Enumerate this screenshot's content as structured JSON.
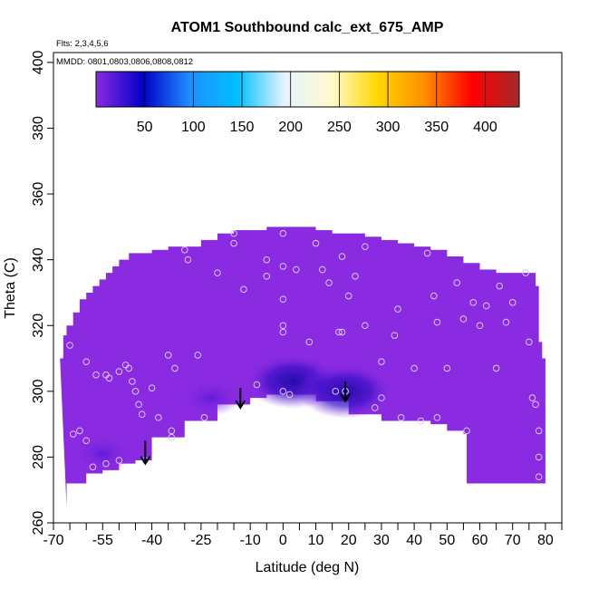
{
  "chart_data": {
    "type": "heatmap",
    "title": "ATOM1 Southbound calc_ext_675_AMP",
    "subtitle_flights": "Flts: 2,3,4,5,6",
    "subtitle_dates": "MMDD: 0801,0803,0806,0808,0812",
    "xlabel": "Latitude (deg N)",
    "ylabel": "Theta (C)",
    "xlim": [
      -70,
      85
    ],
    "ylim": [
      260,
      403
    ],
    "x_ticks_major": [
      -70,
      -55,
      -40,
      -25,
      -10,
      0,
      10,
      20,
      30,
      40,
      50,
      60,
      70,
      80
    ],
    "x_ticks_minor": [
      -65,
      -60,
      -50,
      -45,
      -35,
      -30,
      -20,
      -15,
      -5,
      5,
      15,
      25,
      35,
      45,
      55,
      65,
      75,
      85
    ],
    "y_ticks": [
      260,
      280,
      300,
      320,
      340,
      360,
      380,
      400
    ],
    "grid": false,
    "colorbar": {
      "range": [
        0,
        435
      ],
      "tick_values": [
        50,
        100,
        150,
        200,
        250,
        300,
        350,
        400
      ],
      "tick_labels": [
        "50",
        "100",
        "150",
        "200",
        "250",
        "300",
        "350",
        "400"
      ],
      "placement": "top-inside",
      "colors": [
        "#8a2be2",
        "#0000c8",
        "#1e90ff",
        "#00bfff",
        "#e6f3ff",
        "#fffacd",
        "#ffd700",
        "#ff8c00",
        "#ff0000",
        "#a52a2a"
      ]
    },
    "field_upper_boundary": [
      [
        -68,
        310
      ],
      [
        -67,
        317
      ],
      [
        -66,
        320
      ],
      [
        -64,
        324
      ],
      [
        -62,
        328
      ],
      [
        -60,
        330
      ],
      [
        -58,
        332
      ],
      [
        -56,
        334
      ],
      [
        -54,
        336
      ],
      [
        -52,
        338
      ],
      [
        -50,
        340
      ],
      [
        -47,
        342
      ],
      [
        -45,
        342
      ],
      [
        -40,
        343
      ],
      [
        -35,
        344
      ],
      [
        -30,
        344
      ],
      [
        -25,
        346
      ],
      [
        -20,
        348
      ],
      [
        -15,
        349
      ],
      [
        -10,
        349
      ],
      [
        -5,
        350
      ],
      [
        0,
        350
      ],
      [
        5,
        350
      ],
      [
        10,
        349
      ],
      [
        15,
        348
      ],
      [
        20,
        348
      ],
      [
        25,
        347
      ],
      [
        30,
        346
      ],
      [
        35,
        345
      ],
      [
        40,
        344
      ],
      [
        45,
        343
      ],
      [
        50,
        341
      ],
      [
        55,
        339
      ],
      [
        60,
        337
      ],
      [
        65,
        336
      ],
      [
        70,
        336
      ],
      [
        75,
        336
      ],
      [
        77,
        332
      ],
      [
        78,
        325
      ],
      [
        78,
        315
      ],
      [
        79,
        310
      ],
      [
        80,
        305
      ]
    ],
    "field_lower_boundary": [
      [
        -66,
        265
      ],
      [
        -60,
        272
      ],
      [
        -55,
        275
      ],
      [
        -50,
        276
      ],
      [
        -45,
        278
      ],
      [
        -40,
        279
      ],
      [
        -30,
        286
      ],
      [
        -20,
        291
      ],
      [
        -10,
        296
      ],
      [
        -5,
        298
      ],
      [
        0,
        299
      ],
      [
        10,
        299
      ],
      [
        20,
        297
      ],
      [
        30,
        293
      ],
      [
        40,
        291
      ],
      [
        45,
        291
      ],
      [
        50,
        290
      ],
      [
        55,
        288
      ],
      [
        56,
        287
      ],
      [
        56,
        272
      ],
      [
        65,
        272
      ],
      [
        75,
        272
      ],
      [
        80,
        272
      ]
    ],
    "field_background_value": 30,
    "field_minima": [
      {
        "lat": 3,
        "theta": 303,
        "value": 10
      },
      {
        "lat": 19,
        "theta": 300,
        "value": 8
      },
      {
        "lat": -55,
        "theta": 281,
        "value": 22
      },
      {
        "lat": -22,
        "theta": 298,
        "value": 20
      }
    ],
    "observations": [
      [
        -65,
        314
      ],
      [
        -64,
        287
      ],
      [
        -60,
        309
      ],
      [
        -57,
        305
      ],
      [
        -54,
        305
      ],
      [
        -53,
        304
      ],
      [
        -50,
        306
      ],
      [
        -47,
        307
      ],
      [
        -46,
        303
      ],
      [
        -45,
        300
      ],
      [
        -44,
        296
      ],
      [
        -43,
        293
      ],
      [
        -40,
        301
      ],
      [
        -38,
        292
      ],
      [
        -35,
        311
      ],
      [
        -33,
        307
      ],
      [
        -34,
        288
      ],
      [
        -34,
        286
      ],
      [
        -29,
        340
      ],
      [
        -30,
        343
      ],
      [
        -24,
        292
      ],
      [
        -20,
        336
      ],
      [
        -15,
        348
      ],
      [
        -12,
        331
      ],
      [
        -8,
        302
      ],
      [
        -5,
        335
      ],
      [
        0,
        348
      ],
      [
        0,
        338
      ],
      [
        0,
        328
      ],
      [
        0,
        320
      ],
      [
        0,
        318
      ],
      [
        0,
        300
      ],
      [
        2,
        299
      ],
      [
        4,
        337
      ],
      [
        10,
        345
      ],
      [
        12,
        337
      ],
      [
        14,
        333
      ],
      [
        16,
        300
      ],
      [
        17,
        318
      ],
      [
        18,
        341
      ],
      [
        18,
        318
      ],
      [
        19,
        300
      ],
      [
        20,
        329
      ],
      [
        22,
        335
      ],
      [
        25,
        344
      ],
      [
        28,
        295
      ],
      [
        30,
        309
      ],
      [
        30,
        298
      ],
      [
        34,
        317
      ],
      [
        36,
        292
      ],
      [
        40,
        307
      ],
      [
        42,
        291
      ],
      [
        44,
        342
      ],
      [
        46,
        329
      ],
      [
        47,
        321
      ],
      [
        47,
        292
      ],
      [
        50,
        307
      ],
      [
        53,
        333
      ],
      [
        55,
        322
      ],
      [
        56,
        288
      ],
      [
        58,
        327
      ],
      [
        60,
        320
      ],
      [
        62,
        326
      ],
      [
        65,
        307
      ],
      [
        66,
        332
      ],
      [
        68,
        321
      ],
      [
        70,
        327
      ],
      [
        74,
        336
      ],
      [
        75,
        315
      ],
      [
        76,
        298
      ],
      [
        77,
        296
      ],
      [
        78,
        288
      ],
      [
        78,
        280
      ],
      [
        78,
        274
      ],
      [
        -62,
        288
      ],
      [
        -58,
        277
      ],
      [
        -54,
        278
      ],
      [
        -50,
        279
      ],
      [
        -42,
        279
      ],
      [
        -15,
        345
      ],
      [
        -5,
        340
      ],
      [
        8,
        315
      ],
      [
        25,
        320
      ],
      [
        35,
        325
      ],
      [
        -48,
        308
      ],
      [
        -26,
        311
      ],
      [
        -60,
        285
      ]
    ],
    "arrows": [
      {
        "lat": -42,
        "theta_from": 285,
        "theta_to": 278
      },
      {
        "lat": -13,
        "theta_from": 301,
        "theta_to": 295
      },
      {
        "lat": 19,
        "theta_from": 303,
        "theta_to": 297
      }
    ]
  }
}
